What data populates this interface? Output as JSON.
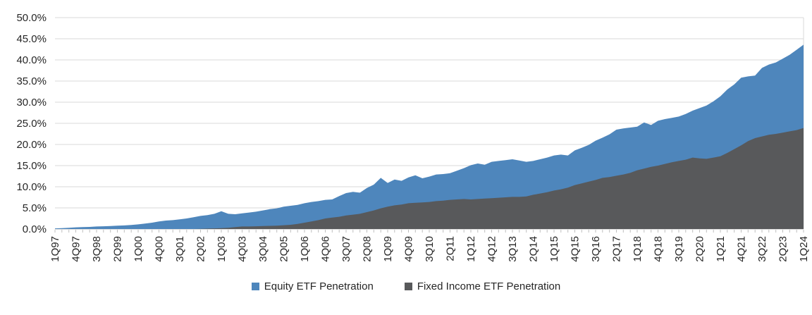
{
  "chart_data": {
    "type": "area",
    "title": "",
    "xlabel": "",
    "ylabel": "",
    "ylim": [
      0,
      50
    ],
    "grid": true,
    "legend_position": "bottom",
    "x_label_every": 3,
    "x_label_rotation": -90,
    "y_tick_labels": [
      "0.0%",
      "5.0%",
      "10.0%",
      "15.0%",
      "20.0%",
      "25.0%",
      "30.0%",
      "35.0%",
      "40.0%",
      "45.0%",
      "50.0%"
    ],
    "colors": {
      "gridline": "#D9D9D9",
      "axis": "#BFBFBF",
      "text": "#262626"
    },
    "categories": [
      "1Q97",
      "2Q97",
      "3Q97",
      "4Q97",
      "1Q98",
      "2Q98",
      "3Q98",
      "4Q98",
      "1Q99",
      "2Q99",
      "3Q99",
      "4Q99",
      "1Q00",
      "2Q00",
      "3Q00",
      "4Q00",
      "1Q01",
      "2Q01",
      "3Q01",
      "4Q01",
      "1Q02",
      "2Q02",
      "3Q02",
      "4Q02",
      "1Q03",
      "2Q03",
      "3Q03",
      "4Q03",
      "1Q04",
      "2Q04",
      "3Q04",
      "4Q04",
      "1Q05",
      "2Q05",
      "3Q05",
      "4Q05",
      "1Q06",
      "2Q06",
      "3Q06",
      "4Q06",
      "1Q07",
      "2Q07",
      "3Q07",
      "4Q07",
      "1Q08",
      "2Q08",
      "3Q08",
      "4Q08",
      "1Q09",
      "2Q09",
      "3Q09",
      "4Q09",
      "1Q10",
      "2Q10",
      "3Q10",
      "4Q10",
      "1Q11",
      "2Q11",
      "3Q11",
      "4Q11",
      "1Q12",
      "2Q12",
      "3Q12",
      "4Q12",
      "1Q13",
      "2Q13",
      "3Q13",
      "4Q13",
      "1Q14",
      "2Q14",
      "3Q14",
      "4Q14",
      "1Q15",
      "2Q15",
      "3Q15",
      "4Q15",
      "1Q16",
      "2Q16",
      "3Q16",
      "4Q16",
      "1Q17",
      "2Q17",
      "3Q17",
      "4Q17",
      "1Q18",
      "2Q18",
      "3Q18",
      "4Q18",
      "1Q19",
      "2Q19",
      "3Q19",
      "4Q19",
      "1Q20",
      "2Q20",
      "3Q20",
      "4Q20",
      "1Q21",
      "2Q21",
      "3Q21",
      "4Q21",
      "1Q22",
      "2Q22",
      "3Q22",
      "4Q22",
      "1Q23",
      "2Q23",
      "3Q23",
      "4Q23",
      "1Q24"
    ],
    "series": [
      {
        "name": "Equity ETF Penetration",
        "color": "#4E86BC",
        "values": [
          0.15,
          0.2,
          0.3,
          0.4,
          0.45,
          0.5,
          0.6,
          0.65,
          0.7,
          0.8,
          0.85,
          0.95,
          1.1,
          1.3,
          1.5,
          1.8,
          2.0,
          2.1,
          2.3,
          2.5,
          2.8,
          3.1,
          3.3,
          3.6,
          4.2,
          3.6,
          3.5,
          3.7,
          3.9,
          4.1,
          4.4,
          4.7,
          4.9,
          5.3,
          5.5,
          5.7,
          6.1,
          6.4,
          6.6,
          6.9,
          7.0,
          7.8,
          8.5,
          8.8,
          8.6,
          9.7,
          10.5,
          12.1,
          10.9,
          11.7,
          11.4,
          12.2,
          12.7,
          12.0,
          12.4,
          12.9,
          13.0,
          13.2,
          13.8,
          14.4,
          15.1,
          15.5,
          15.2,
          15.9,
          16.1,
          16.3,
          16.5,
          16.2,
          15.9,
          16.1,
          16.5,
          16.9,
          17.4,
          17.6,
          17.4,
          18.6,
          19.2,
          19.9,
          20.9,
          21.6,
          22.4,
          23.5,
          23.8,
          24.0,
          24.2,
          25.2,
          24.6,
          25.6,
          26.0,
          26.3,
          26.6,
          27.2,
          28.0,
          28.6,
          29.2,
          30.2,
          31.4,
          33.0,
          34.2,
          35.8,
          36.1,
          36.3,
          38.1,
          38.9,
          39.4,
          40.3,
          41.2,
          42.4,
          43.6
        ]
      },
      {
        "name": "Fixed Income ETF Penetration",
        "color": "#58595B",
        "values": [
          0,
          0,
          0,
          0,
          0,
          0,
          0,
          0,
          0,
          0,
          0,
          0,
          0,
          0,
          0,
          0,
          0,
          0,
          0,
          0,
          0,
          0.05,
          0.1,
          0.15,
          0.2,
          0.3,
          0.45,
          0.6,
          0.6,
          0.65,
          0.7,
          0.75,
          0.8,
          0.9,
          1.0,
          1.2,
          1.5,
          1.8,
          2.1,
          2.5,
          2.7,
          2.9,
          3.2,
          3.4,
          3.6,
          4.0,
          4.4,
          4.9,
          5.3,
          5.6,
          5.8,
          6.1,
          6.2,
          6.3,
          6.4,
          6.6,
          6.7,
          6.9,
          7.0,
          7.1,
          7.0,
          7.1,
          7.2,
          7.3,
          7.4,
          7.5,
          7.6,
          7.6,
          7.7,
          8.1,
          8.4,
          8.7,
          9.1,
          9.4,
          9.8,
          10.4,
          10.8,
          11.2,
          11.6,
          12.1,
          12.3,
          12.6,
          12.9,
          13.3,
          13.9,
          14.3,
          14.7,
          15.0,
          15.4,
          15.8,
          16.1,
          16.4,
          16.9,
          16.7,
          16.6,
          16.9,
          17.2,
          18.0,
          18.9,
          19.8,
          20.8,
          21.5,
          21.9,
          22.3,
          22.5,
          22.8,
          23.1,
          23.4,
          23.9
        ]
      }
    ]
  }
}
